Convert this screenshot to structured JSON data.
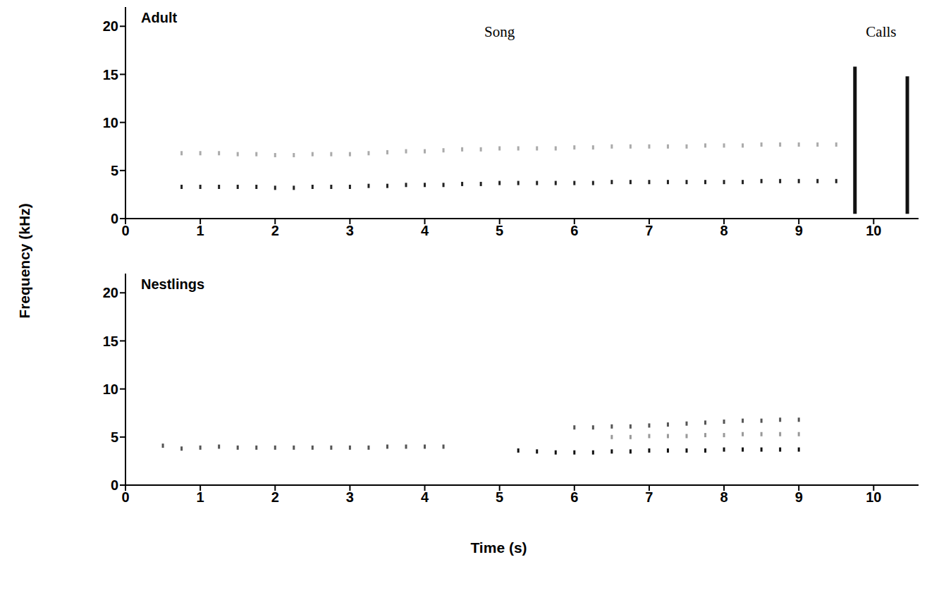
{
  "xlabel": "Time (s)",
  "ylabel": "Frequency (kHz)",
  "chart_data": [
    {
      "type": "scatter",
      "title": "Adult",
      "xlim": [
        0,
        10.6
      ],
      "ylim": [
        0,
        22
      ],
      "xticks": [
        0,
        1,
        2,
        3,
        4,
        5,
        6,
        7,
        8,
        9,
        10
      ],
      "yticks": [
        0,
        5,
        10,
        15,
        20
      ],
      "annotations": [
        {
          "text": "Song",
          "x": 5.0,
          "y": 19.5
        },
        {
          "text": "Calls",
          "x": 10.1,
          "y": 19.5
        }
      ],
      "series": [
        {
          "color": "#222222",
          "marker": "tick",
          "x": [
            0.75,
            1,
            1.25,
            1.5,
            1.75,
            2,
            2.25,
            2.5,
            2.75,
            3,
            3.25,
            3.5,
            3.75,
            4,
            4.25,
            4.5,
            4.75,
            5,
            5.25,
            5.5,
            5.75,
            6,
            6.25,
            6.5,
            6.75,
            7,
            7.25,
            7.5,
            7.75,
            8,
            8.25,
            8.5,
            8.75,
            9,
            9.25,
            9.5
          ],
          "y": [
            3.3,
            3.3,
            3.3,
            3.3,
            3.3,
            3.2,
            3.2,
            3.3,
            3.3,
            3.3,
            3.4,
            3.4,
            3.5,
            3.5,
            3.5,
            3.6,
            3.6,
            3.7,
            3.7,
            3.7,
            3.7,
            3.7,
            3.7,
            3.8,
            3.8,
            3.8,
            3.8,
            3.8,
            3.8,
            3.8,
            3.8,
            3.9,
            3.9,
            3.9,
            3.9,
            3.9
          ]
        },
        {
          "color": "#aaaaaa",
          "marker": "tick",
          "x": [
            0.75,
            1,
            1.25,
            1.5,
            1.75,
            2,
            2.25,
            2.5,
            2.75,
            3,
            3.25,
            3.5,
            3.75,
            4,
            4.25,
            4.5,
            4.75,
            5,
            5.25,
            5.5,
            5.75,
            6,
            6.25,
            6.5,
            6.75,
            7,
            7.25,
            7.5,
            7.75,
            8,
            8.25,
            8.5,
            8.75,
            9,
            9.25,
            9.5
          ],
          "y": [
            6.8,
            6.8,
            6.8,
            6.7,
            6.7,
            6.6,
            6.6,
            6.7,
            6.7,
            6.7,
            6.8,
            6.9,
            7.0,
            7.0,
            7.1,
            7.2,
            7.2,
            7.3,
            7.3,
            7.3,
            7.3,
            7.4,
            7.4,
            7.5,
            7.5,
            7.5,
            7.5,
            7.5,
            7.6,
            7.6,
            7.6,
            7.7,
            7.7,
            7.7,
            7.7,
            7.7
          ]
        },
        {
          "color": "#111111",
          "marker": "none",
          "line_style": "solid",
          "x": [
            9.75,
            9.75
          ],
          "y": [
            0.5,
            15.8
          ]
        },
        {
          "color": "#111111",
          "marker": "none",
          "line_style": "solid",
          "x": [
            10.45,
            10.45
          ],
          "y": [
            0.5,
            14.8
          ]
        }
      ]
    },
    {
      "type": "scatter",
      "title": "Nestlings",
      "xlim": [
        0,
        10.6
      ],
      "ylim": [
        0,
        22
      ],
      "xticks": [
        0,
        1,
        2,
        3,
        4,
        5,
        6,
        7,
        8,
        9,
        10
      ],
      "yticks": [
        0,
        5,
        10,
        15,
        20
      ],
      "series": [
        {
          "color": "#555555",
          "marker": "tick",
          "x": [
            0.5,
            0.75,
            1,
            1.25,
            1.5,
            1.75,
            2,
            2.25,
            2.5,
            2.75,
            3,
            3.25,
            3.5,
            3.75,
            4,
            4.25
          ],
          "y": [
            4.1,
            3.8,
            3.9,
            4.0,
            3.9,
            3.9,
            3.9,
            3.9,
            3.9,
            3.9,
            3.9,
            3.9,
            4.0,
            4.0,
            4.0,
            4.0
          ]
        },
        {
          "color": "#111111",
          "marker": "tick",
          "x": [
            5.25,
            5.5,
            5.75,
            6,
            6.25,
            6.5,
            6.75,
            7,
            7.25,
            7.5,
            7.75,
            8,
            8.25,
            8.5,
            8.75,
            9
          ],
          "y": [
            3.6,
            3.5,
            3.4,
            3.4,
            3.4,
            3.5,
            3.5,
            3.6,
            3.6,
            3.6,
            3.6,
            3.7,
            3.7,
            3.7,
            3.7,
            3.7
          ]
        },
        {
          "color": "#555555",
          "marker": "tick",
          "x": [
            6,
            6.25,
            6.5,
            6.75,
            7,
            7.25,
            7.5,
            7.75,
            8,
            8.25,
            8.5,
            8.75,
            9
          ],
          "y": [
            6.0,
            6.0,
            6.1,
            6.1,
            6.2,
            6.3,
            6.4,
            6.5,
            6.6,
            6.7,
            6.7,
            6.8,
            6.8
          ]
        },
        {
          "color": "#999999",
          "marker": "tick",
          "x": [
            6.5,
            6.75,
            7,
            7.25,
            7.5,
            7.75,
            8,
            8.25,
            8.5,
            8.75,
            9
          ],
          "y": [
            5.0,
            5.0,
            5.1,
            5.1,
            5.1,
            5.2,
            5.2,
            5.3,
            5.3,
            5.3,
            5.3
          ]
        }
      ]
    }
  ]
}
